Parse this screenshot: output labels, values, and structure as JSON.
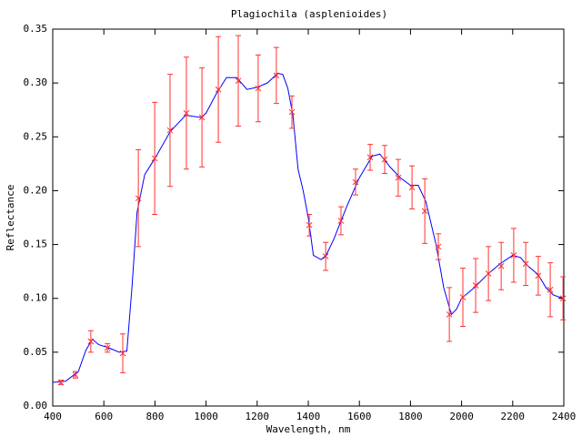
{
  "chart_data": {
    "type": "line",
    "title": "Plagiochila (asplenioides)",
    "x_label": "Wavelength, nm",
    "y_label": "Reflectance",
    "xlim": [
      400,
      2400
    ],
    "ylim": [
      0,
      0.35
    ],
    "xticks": [
      400,
      600,
      800,
      1000,
      1200,
      1400,
      1600,
      1800,
      2000,
      2200,
      2400
    ],
    "yticks": [
      {
        "value": 0,
        "label": "0.00"
      },
      {
        "value": 0.05,
        "label": "0.05"
      },
      {
        "value": 0.1,
        "label": "0.10"
      },
      {
        "value": 0.15,
        "label": "0.15"
      },
      {
        "value": 0.2,
        "label": "0.20"
      },
      {
        "value": 0.25,
        "label": "0.25"
      },
      {
        "value": 0.3,
        "label": "0.30"
      },
      {
        "value": 0.35,
        "label": "0.35"
      }
    ],
    "grid": false,
    "series": [
      {
        "color": "#0000ff",
        "x": [
          400,
          450,
          500,
          530,
          555,
          580,
          620,
          660,
          690,
          710,
          730,
          760,
          800,
          860,
          920,
          980,
          1000,
          1040,
          1080,
          1120,
          1160,
          1200,
          1240,
          1280,
          1300,
          1320,
          1340,
          1360,
          1380,
          1400,
          1420,
          1450,
          1470,
          1500,
          1550,
          1600,
          1650,
          1680,
          1720,
          1760,
          1800,
          1830,
          1860,
          1880,
          1900,
          1930,
          1960,
          1980,
          2000,
          2050,
          2100,
          2150,
          2200,
          2230,
          2260,
          2300,
          2330,
          2360,
          2400
        ],
        "values": [
          0.022,
          0.023,
          0.032,
          0.052,
          0.062,
          0.057,
          0.054,
          0.05,
          0.051,
          0.11,
          0.18,
          0.215,
          0.23,
          0.255,
          0.27,
          0.268,
          0.272,
          0.29,
          0.305,
          0.305,
          0.294,
          0.296,
          0.3,
          0.309,
          0.308,
          0.295,
          0.27,
          0.22,
          0.2,
          0.175,
          0.14,
          0.136,
          0.14,
          0.155,
          0.185,
          0.212,
          0.232,
          0.234,
          0.222,
          0.212,
          0.205,
          0.205,
          0.19,
          0.17,
          0.15,
          0.11,
          0.085,
          0.09,
          0.1,
          0.11,
          0.122,
          0.132,
          0.14,
          0.138,
          0.13,
          0.122,
          0.11,
          0.103,
          0.1
        ]
      },
      {
        "color": "#ff3333",
        "x": [
          432,
          489,
          549,
          614,
          674,
          735,
          799,
          859,
          923,
          984,
          1048,
          1126,
          1204,
          1275,
          1336,
          1404,
          1468,
          1528,
          1585,
          1642,
          1699,
          1752,
          1806,
          1856,
          1909,
          1952,
          2005,
          2055,
          2105,
          2155,
          2204,
          2251,
          2300,
          2347,
          2397
        ],
        "values": [
          0.022,
          0.029,
          0.06,
          0.054,
          0.049,
          0.193,
          0.23,
          0.256,
          0.272,
          0.268,
          0.294,
          0.302,
          0.295,
          0.307,
          0.273,
          0.168,
          0.139,
          0.172,
          0.208,
          0.231,
          0.229,
          0.212,
          0.203,
          0.181,
          0.148,
          0.085,
          0.101,
          0.112,
          0.123,
          0.13,
          0.14,
          0.132,
          0.121,
          0.108,
          0.1
        ],
        "errors": [
          0.002,
          0.003,
          0.01,
          0.004,
          0.018,
          0.045,
          0.052,
          0.052,
          0.052,
          0.046,
          0.049,
          0.042,
          0.031,
          0.026,
          0.015,
          0.01,
          0.013,
          0.013,
          0.012,
          0.012,
          0.013,
          0.017,
          0.02,
          0.03,
          0.012,
          0.025,
          0.027,
          0.025,
          0.025,
          0.022,
          0.025,
          0.02,
          0.018,
          0.025,
          0.02
        ]
      }
    ]
  }
}
